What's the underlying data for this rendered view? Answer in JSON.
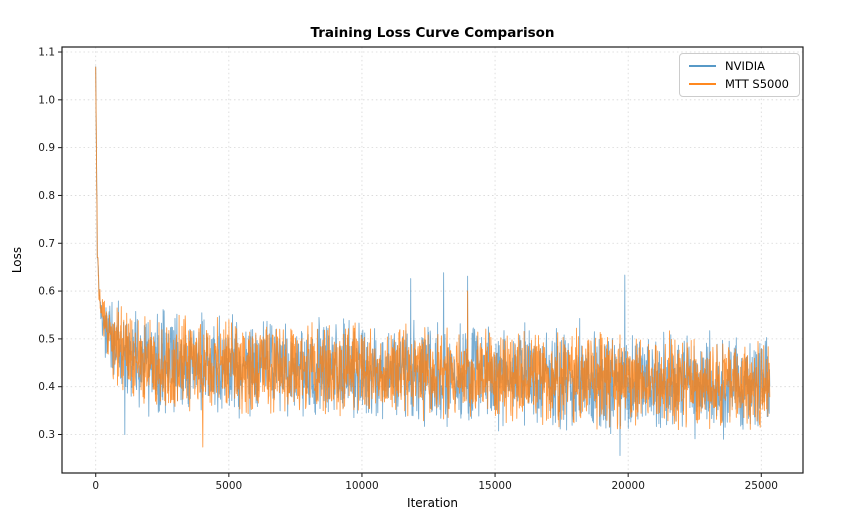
{
  "accent_colors": {
    "nvidia_line": "#1f77b4",
    "mtt_line": "#ff7f0e",
    "grid": "#d6d6d6",
    "spine": "#1c1c1c",
    "tick_text": "#1a1a1a"
  },
  "chart_data": {
    "type": "line",
    "title": "Training Loss Curve Comparison",
    "xlabel": "Iteration",
    "ylabel": "Loss",
    "xlim": [
      -1267,
      26567
    ],
    "ylim": [
      0.2195,
      1.1105
    ],
    "xticks": [
      0,
      5000,
      10000,
      15000,
      20000,
      25000
    ],
    "yticks": [
      0.3,
      0.4,
      0.5,
      0.6,
      0.7,
      0.8,
      0.9,
      1.0,
      1.1
    ],
    "grid": true,
    "grid_style": "dashed",
    "legend_position": "upper-right",
    "series": [
      {
        "name": "NVIDIA",
        "color": "#1f77b4",
        "opacity": 0.6
      },
      {
        "name": "MTT S5000",
        "color": "#ff7f0e",
        "opacity": 0.78
      }
    ],
    "x_range_of_data": [
      0,
      25320
    ],
    "start_peak_loss": 1.07,
    "final_loss_band": [
      0.3,
      0.5
    ],
    "envelope": {
      "x": [
        0,
        40,
        80,
        120,
        200,
        400,
        700,
        1000,
        1500,
        2000,
        3000,
        5000,
        8000,
        11000,
        14000,
        17000,
        20000,
        22500,
        25320
      ],
      "center": [
        1.07,
        0.8,
        0.66,
        0.6,
        0.555,
        0.52,
        0.49,
        0.47,
        0.455,
        0.45,
        0.447,
        0.442,
        0.437,
        0.432,
        0.427,
        0.417,
        0.412,
        0.403,
        0.4
      ],
      "spread": [
        0.004,
        0.012,
        0.022,
        0.035,
        0.05,
        0.075,
        0.095,
        0.1,
        0.105,
        0.108,
        0.11,
        0.11,
        0.11,
        0.11,
        0.11,
        0.11,
        0.11,
        0.108,
        0.105
      ]
    }
  }
}
